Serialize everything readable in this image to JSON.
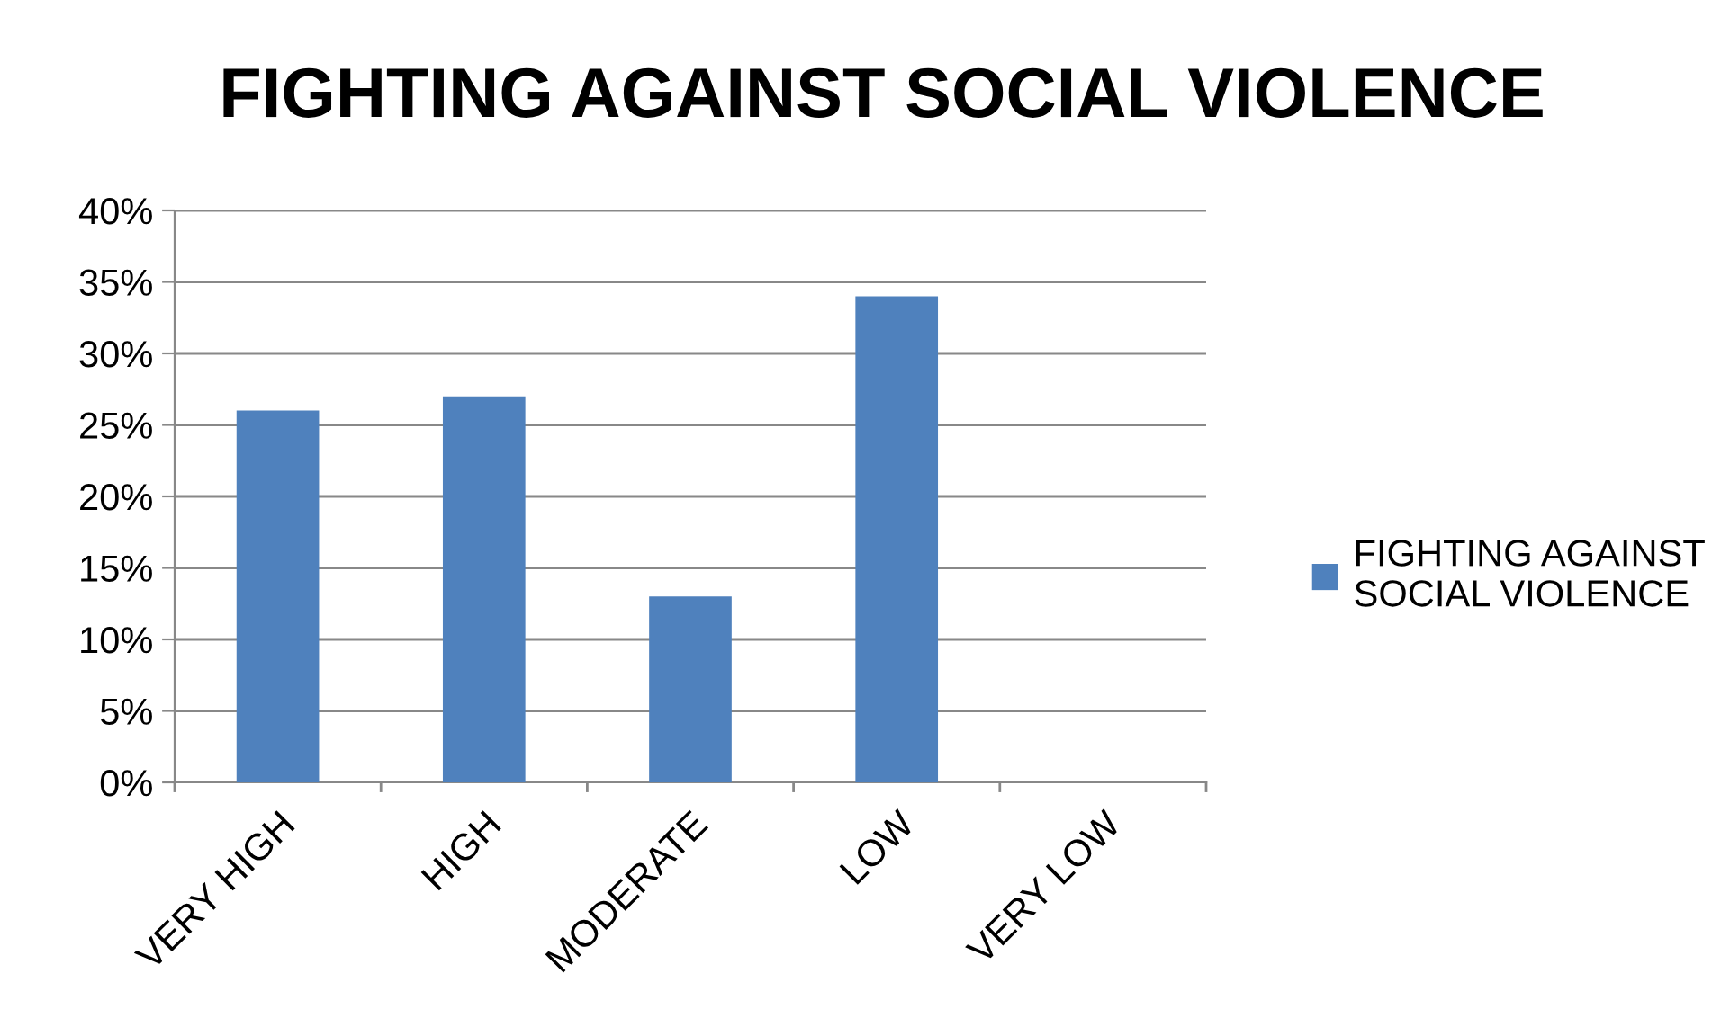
{
  "chart_data": {
    "type": "bar",
    "title": "FIGHTING AGAINST SOCIAL VIOLENCE",
    "categories": [
      "VERY HIGH",
      "HIGH",
      "MODERATE",
      "LOW",
      "VERY LOW"
    ],
    "series": [
      {
        "name": "FIGHTING AGAINST SOCIAL VIOLENCE",
        "color": "#4f81bd",
        "values": [
          26,
          27,
          13,
          34,
          0
        ]
      }
    ],
    "ylim": [
      0,
      40
    ],
    "yticks": [
      {
        "value": 0,
        "label": "0%"
      },
      {
        "value": 5,
        "label": "5%"
      },
      {
        "value": 10,
        "label": "10%"
      },
      {
        "value": 15,
        "label": "15%"
      },
      {
        "value": 20,
        "label": "20%"
      },
      {
        "value": 25,
        "label": "25%"
      },
      {
        "value": 30,
        "label": "30%"
      },
      {
        "value": 35,
        "label": "35%"
      },
      {
        "value": 40,
        "label": "40%"
      }
    ],
    "grid": "y",
    "legend": "right"
  }
}
